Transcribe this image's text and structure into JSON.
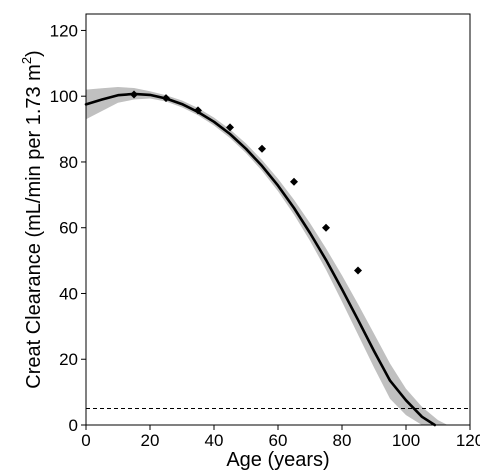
{
  "chart_data": {
    "type": "line",
    "title": "",
    "xlabel": "Age (years)",
    "ylabel": "Creat Clearance (mL/min per 1.73 m",
    "ylabel_superscript": "2",
    "ylabel_close": ")",
    "xlim": [
      0,
      120
    ],
    "ylim": [
      0,
      125
    ],
    "x_ticks": [
      0,
      20,
      40,
      60,
      80,
      100,
      120
    ],
    "y_ticks": [
      0,
      20,
      40,
      60,
      80,
      100,
      120
    ],
    "grid": false,
    "legend": "none",
    "series": [
      {
        "kind": "fitted-curve",
        "x": [
          0,
          5,
          10,
          15,
          20,
          25,
          30,
          35,
          40,
          45,
          50,
          55,
          60,
          65,
          70,
          75,
          80,
          85,
          90,
          95,
          100,
          105,
          109
        ],
        "y": [
          97.5,
          99,
          100.3,
          100.7,
          100.4,
          99.3,
          97.6,
          95.2,
          92.2,
          88.5,
          84,
          78.8,
          72.8,
          66,
          58.4,
          50.2,
          41.3,
          32,
          22.5,
          13.5,
          7.5,
          2.5,
          0
        ]
      },
      {
        "kind": "confidence-band",
        "x": [
          0,
          5,
          10,
          15,
          20,
          25,
          30,
          35,
          40,
          45,
          50,
          55,
          60,
          65,
          70,
          75,
          80,
          85,
          90,
          95,
          100,
          105,
          110,
          113
        ],
        "upper": [
          102,
          102.4,
          102.8,
          102.5,
          101.5,
          100.3,
          98.7,
          96.4,
          93.5,
          89.9,
          85.6,
          80.6,
          74.9,
          68.5,
          61.4,
          53.7,
          45.5,
          36.8,
          27.8,
          18.7,
          11,
          5.5,
          1.5,
          0
        ],
        "lower": [
          93,
          95.5,
          98,
          99,
          99.3,
          98.4,
          96.6,
          94.2,
          91.1,
          87.3,
          82.7,
          77.3,
          71.1,
          64,
          56,
          47.2,
          37.5,
          27.5,
          17.5,
          8,
          3,
          0,
          0,
          0
        ]
      },
      {
        "kind": "observed-points",
        "x": [
          15,
          25,
          35,
          45,
          55,
          65,
          75,
          85
        ],
        "y": [
          100.5,
          99.4,
          95.7,
          90.5,
          84,
          74,
          60,
          47
        ]
      },
      {
        "kind": "reference-line",
        "y": 5,
        "style": "dashed"
      }
    ],
    "colors": {
      "curve": "#000000",
      "band": "#c0c0c0",
      "points": "#000000",
      "reference": "#000000"
    }
  }
}
